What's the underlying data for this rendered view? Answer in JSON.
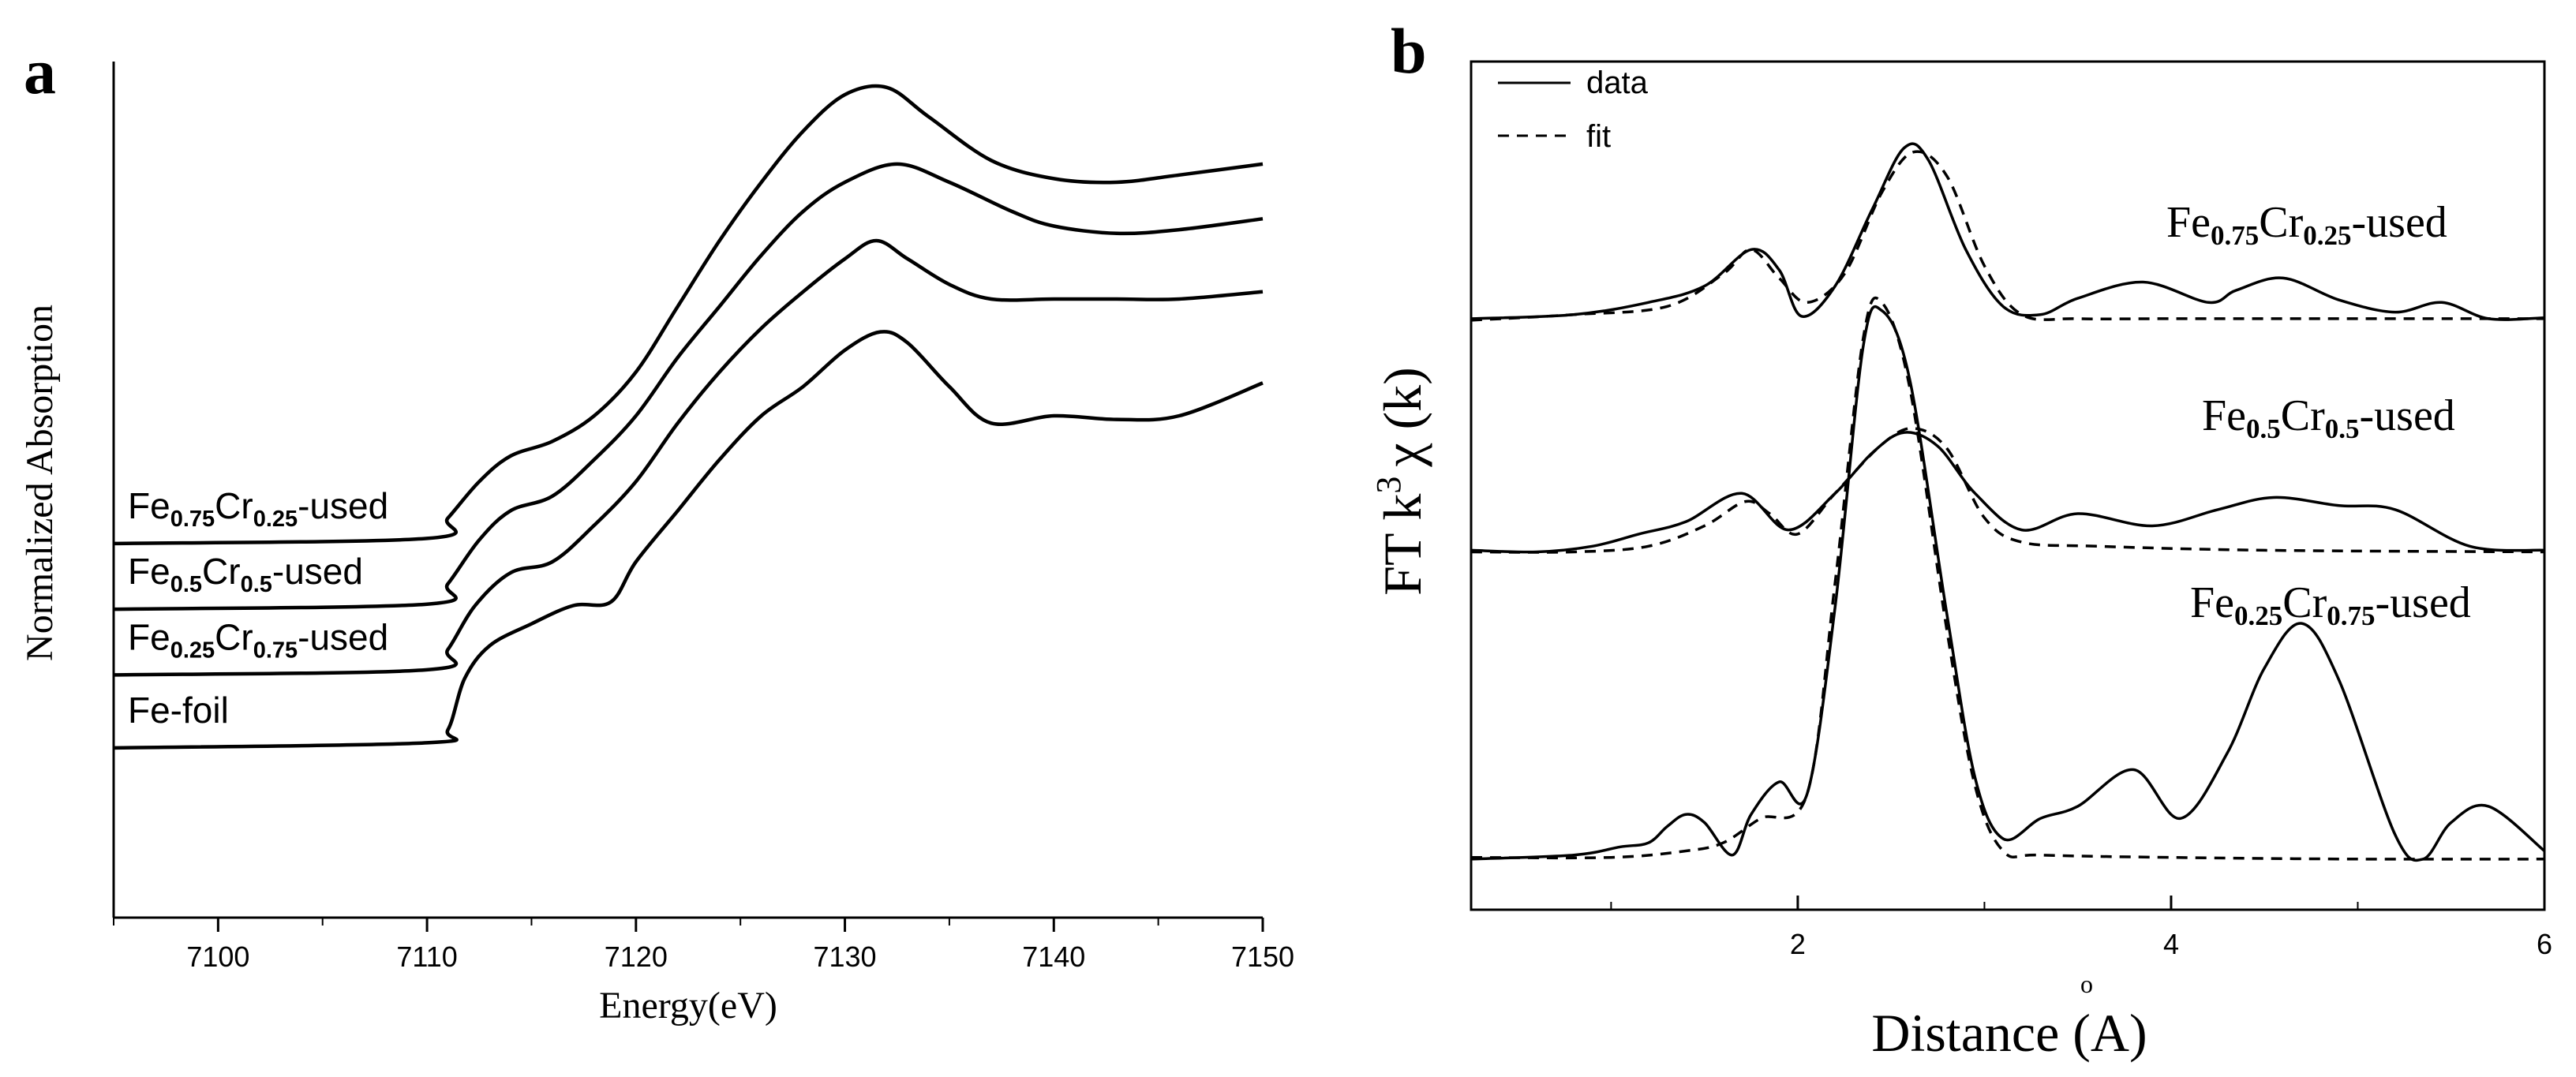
{
  "chart_data": [
    {
      "panel": "a",
      "type": "line",
      "xlabel": "Energy(eV)",
      "ylabel": "Normalized Absorption",
      "xlim": [
        7095,
        7150
      ],
      "ylim": [
        0,
        1
      ],
      "xticks": [
        "7100",
        "7110",
        "7120",
        "7130",
        "7140",
        "7150"
      ],
      "xtick_values": [
        7100,
        7110,
        7120,
        7130,
        7140,
        7150
      ],
      "series": [
        {
          "name": "Fe-foil",
          "label_main": "Fe-foil",
          "label_sub1": "",
          "label_mid": "",
          "label_sub2": "",
          "label_tail": "",
          "x": [
            7095,
            7110,
            7111,
            7111.8,
            7113,
            7115,
            7117,
            7118.8,
            7120,
            7122,
            7124,
            7126,
            7128,
            7130,
            7131.7,
            7133,
            7135,
            7137,
            7140,
            7143,
            7146,
            7150
          ],
          "y": [
            0.105,
            0.112,
            0.13,
            0.2,
            0.245,
            0.275,
            0.3,
            0.305,
            0.36,
            0.43,
            0.5,
            0.56,
            0.6,
            0.65,
            0.675,
            0.66,
            0.6,
            0.55,
            0.56,
            0.555,
            0.56,
            0.605
          ]
        },
        {
          "name": "Fe0.25Cr0.75-used",
          "label_main": "Fe",
          "label_sub1": "0.25",
          "label_mid": "Cr",
          "label_sub2": "0.75",
          "label_tail": "-used",
          "x": [
            7095,
            7110,
            7111,
            7112.3,
            7114,
            7116,
            7118,
            7120,
            7122,
            7124,
            7126,
            7128,
            7130,
            7131.5,
            7133,
            7135,
            7137,
            7140,
            7143,
            7146,
            7150
          ],
          "y": [
            0.205,
            0.212,
            0.24,
            0.3,
            0.345,
            0.36,
            0.41,
            0.47,
            0.55,
            0.62,
            0.68,
            0.73,
            0.775,
            0.8,
            0.775,
            0.74,
            0.72,
            0.72,
            0.72,
            0.72,
            0.73
          ]
        },
        {
          "name": "Fe0.5Cr0.5-used",
          "label_main": "Fe",
          "label_sub1": "0.5",
          "label_mid": "Cr",
          "label_sub2": "0.5",
          "label_tail": "-used",
          "x": [
            7095,
            7110,
            7111,
            7112.5,
            7114,
            7116,
            7118,
            7120,
            7122,
            7124,
            7126,
            7128,
            7130,
            7132.5,
            7135,
            7138,
            7140,
            7143,
            7146,
            7150
          ],
          "y": [
            0.295,
            0.302,
            0.33,
            0.39,
            0.43,
            0.45,
            0.5,
            0.56,
            0.64,
            0.71,
            0.78,
            0.84,
            0.88,
            0.905,
            0.88,
            0.84,
            0.82,
            0.81,
            0.815,
            0.83
          ]
        },
        {
          "name": "Fe0.75Cr0.25-used",
          "label_main": "Fe",
          "label_sub1": "0.75",
          "label_mid": "Cr",
          "label_sub2": "0.25",
          "label_tail": "-used",
          "x": [
            7095,
            7110,
            7111,
            7112.5,
            7114,
            7116,
            7118,
            7120,
            7122,
            7124,
            7126,
            7128,
            7130,
            7132,
            7134,
            7137,
            7140,
            7143,
            7146,
            7150
          ],
          "y": [
            0.385,
            0.392,
            0.42,
            0.47,
            0.505,
            0.525,
            0.56,
            0.62,
            0.71,
            0.8,
            0.88,
            0.95,
            1.0,
            1.01,
            0.97,
            0.91,
            0.885,
            0.88,
            0.89,
            0.905
          ]
        }
      ]
    },
    {
      "panel": "b",
      "type": "line",
      "xlabel": "Distance (",
      "xlabel_unit": "A",
      "xlabel_unit_ring": "o",
      "xlabel_close": ")",
      "ylabel_main": "FT k",
      "ylabel_sup": "3",
      "ylabel_func": "χ (k)",
      "xlim": [
        0.25,
        6
      ],
      "ylim": [
        0,
        1
      ],
      "xticks": [
        "2",
        "4",
        "6"
      ],
      "xtick_values": [
        2,
        4,
        6
      ],
      "legend": [
        "data",
        "fit"
      ],
      "legend_position": "top-left",
      "series": [
        {
          "name": "Fe0.75Cr0.25-used",
          "label_main": "Fe",
          "label_sub1": "0.75",
          "label_mid": "Cr",
          "label_sub2": "0.25",
          "label_tail": "-used",
          "data": {
            "x": [
              0.25,
              0.8,
              1.2,
              1.5,
              1.75,
              1.9,
              2.02,
              2.2,
              2.4,
              2.57,
              2.7,
              2.9,
              3.1,
              3.3,
              3.5,
              3.85,
              4.2,
              4.35,
              4.6,
              4.9,
              5.2,
              5.45,
              5.7,
              6.0
            ],
            "y": [
              0.705,
              0.71,
              0.725,
              0.745,
              0.79,
              0.765,
              0.708,
              0.745,
              0.84,
              0.915,
              0.9,
              0.79,
              0.72,
              0.71,
              0.73,
              0.75,
              0.725,
              0.74,
              0.755,
              0.728,
              0.713,
              0.725,
              0.705,
              0.706
            ]
          },
          "fit": {
            "x": [
              0.25,
              0.8,
              1.3,
              1.6,
              1.75,
              1.9,
              2.05,
              2.25,
              2.45,
              2.62,
              2.8,
              3.0,
              3.2,
              3.5,
              4.0,
              5.0,
              6.0
            ],
            "y": [
              0.703,
              0.71,
              0.72,
              0.76,
              0.79,
              0.755,
              0.725,
              0.76,
              0.86,
              0.91,
              0.88,
              0.77,
              0.71,
              0.705,
              0.705,
              0.705,
              0.705
            ]
          }
        },
        {
          "name": "Fe0.5Cr0.5-used",
          "label_main": "Fe",
          "label_sub1": "0.5",
          "label_mid": "Cr",
          "label_sub2": "0.5",
          "label_tail": "-used",
          "data": {
            "x": [
              0.25,
              0.6,
              0.9,
              1.15,
              1.4,
              1.7,
              1.95,
              2.2,
              2.4,
              2.57,
              2.75,
              2.95,
              3.2,
              3.5,
              3.9,
              4.25,
              4.55,
              4.9,
              5.2,
              5.6,
              6.0
            ],
            "y": [
              0.42,
              0.418,
              0.425,
              0.44,
              0.455,
              0.49,
              0.445,
              0.49,
              0.54,
              0.565,
              0.548,
              0.49,
              0.445,
              0.465,
              0.45,
              0.47,
              0.485,
              0.475,
              0.47,
              0.425,
              0.42
            ]
          },
          "fit": {
            "x": [
              0.25,
              0.8,
              1.2,
              1.5,
              1.72,
              1.85,
              2.0,
              2.2,
              2.45,
              2.62,
              2.8,
              3.0,
              3.2,
              3.6,
              4.5,
              6.0
            ],
            "y": [
              0.418,
              0.418,
              0.425,
              0.45,
              0.48,
              0.465,
              0.44,
              0.49,
              0.55,
              0.57,
              0.545,
              0.46,
              0.43,
              0.425,
              0.42,
              0.418
            ]
          }
        },
        {
          "name": "Fe0.25Cr0.75-used",
          "label_main": "Fe",
          "label_sub1": "0.25",
          "label_mid": "Cr",
          "label_sub2": "0.75",
          "label_tail": "-used",
          "data": {
            "x": [
              0.25,
              0.8,
              1.05,
              1.2,
              1.3,
              1.4,
              1.5,
              1.65,
              1.75,
              1.9,
              2.05,
              2.2,
              2.35,
              2.45,
              2.6,
              2.8,
              2.95,
              3.1,
              3.3,
              3.5,
              3.8,
              4.05,
              4.3,
              4.5,
              4.7,
              4.9,
              5.2,
              5.35,
              5.5,
              5.7,
              6.0
            ],
            "y": [
              0.04,
              0.045,
              0.055,
              0.06,
              0.08,
              0.095,
              0.085,
              0.045,
              0.095,
              0.135,
              0.12,
              0.35,
              0.67,
              0.715,
              0.63,
              0.34,
              0.14,
              0.065,
              0.09,
              0.105,
              0.15,
              0.09,
              0.17,
              0.275,
              0.33,
              0.26,
              0.07,
              0.04,
              0.085,
              0.105,
              0.05
            ]
          },
          "fit": {
            "x": [
              0.25,
              1.0,
              1.4,
              1.6,
              1.8,
              2.05,
              2.2,
              2.35,
              2.45,
              2.6,
              2.8,
              2.95,
              3.1,
              3.3,
              4.0,
              5.0,
              6.0
            ],
            "y": [
              0.042,
              0.042,
              0.05,
              0.06,
              0.09,
              0.12,
              0.38,
              0.68,
              0.725,
              0.62,
              0.32,
              0.13,
              0.05,
              0.045,
              0.042,
              0.04,
              0.04
            ]
          }
        }
      ]
    }
  ]
}
